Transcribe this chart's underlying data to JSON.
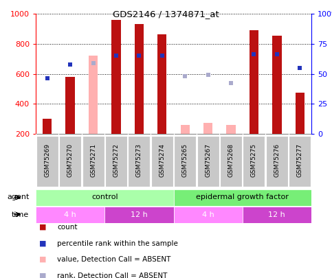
{
  "title": "GDS2146 / 1374871_at",
  "samples": [
    "GSM75269",
    "GSM75270",
    "GSM75271",
    "GSM75272",
    "GSM75273",
    "GSM75274",
    "GSM75265",
    "GSM75267",
    "GSM75268",
    "GSM75275",
    "GSM75276",
    "GSM75277"
  ],
  "count_values": [
    300,
    580,
    null,
    960,
    930,
    865,
    null,
    null,
    null,
    890,
    855,
    475
  ],
  "count_absent": [
    null,
    null,
    720,
    null,
    null,
    null,
    260,
    275,
    260,
    null,
    null,
    null
  ],
  "rank_values": [
    570,
    660,
    null,
    720,
    720,
    720,
    null,
    null,
    null,
    730,
    730,
    640
  ],
  "rank_absent": [
    null,
    null,
    670,
    null,
    null,
    null,
    585,
    595,
    540,
    null,
    null,
    null
  ],
  "ylim_left": [
    200,
    1000
  ],
  "ylim_right": [
    0,
    100
  ],
  "bar_color": "#BB1111",
  "bar_absent_color": "#FFB0B0",
  "rank_color": "#2233BB",
  "rank_absent_color": "#AAAACC",
  "agent_control_color": "#AAFFAA",
  "agent_egf_color": "#77EE77",
  "time_4h_color": "#FF88FF",
  "time_12h_color": "#CC44CC",
  "agent_label_control": "control",
  "agent_label_egf": "epidermal growth factor",
  "time_label_4h": "4 h",
  "time_label_12h": "12 h",
  "legend_items": [
    {
      "color": "#BB1111",
      "label": "count"
    },
    {
      "color": "#2233BB",
      "label": "percentile rank within the sample"
    },
    {
      "color": "#FFB0B0",
      "label": "value, Detection Call = ABSENT"
    },
    {
      "color": "#AAAACC",
      "label": "rank, Detection Call = ABSENT"
    }
  ]
}
